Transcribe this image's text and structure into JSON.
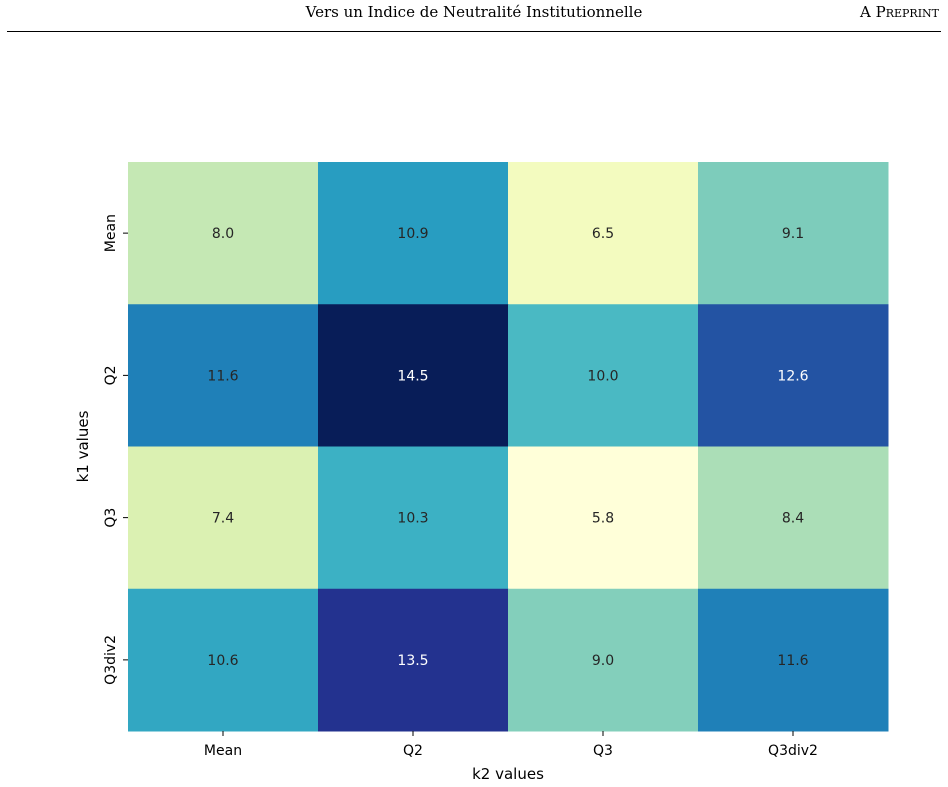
{
  "header": {
    "title": "Vers un Indice de Neutralité Institutionnelle",
    "right": "A Preprint"
  },
  "chart_data": {
    "type": "heatmap",
    "xlabel": "k2 values",
    "ylabel": "k1 values",
    "x_categories": [
      "Mean",
      "Q2",
      "Q3",
      "Q3div2"
    ],
    "y_categories": [
      "Mean",
      "Q2",
      "Q3",
      "Q3div2"
    ],
    "values": [
      [
        8.0,
        10.9,
        6.5,
        9.1
      ],
      [
        11.6,
        14.5,
        10.0,
        12.6
      ],
      [
        7.4,
        10.3,
        5.8,
        8.4
      ],
      [
        10.6,
        13.5,
        9.0,
        11.6
      ]
    ],
    "value_labels": [
      [
        "8.0",
        "10.9",
        "6.5",
        "9.1"
      ],
      [
        "11.6",
        "14.5",
        "10.0",
        "12.6"
      ],
      [
        "7.4",
        "10.3",
        "5.8",
        "8.4"
      ],
      [
        "10.6",
        "13.5",
        "9.0",
        "11.6"
      ]
    ],
    "colormap": "YlGnBu",
    "colorbar": false,
    "grid": false
  }
}
